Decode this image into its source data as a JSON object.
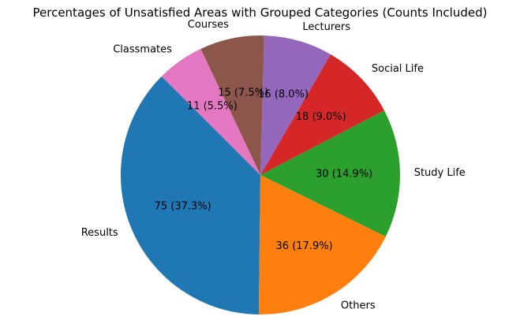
{
  "chart_data": {
    "type": "pie",
    "title": "Percentages of Unsatisfied Areas with Grouped Categories (Counts Included)",
    "start_angle_deg": 135,
    "direction": "counterclockwise",
    "slices": [
      {
        "label": "Results",
        "value": 75,
        "percent_label": "75 (37.3%)",
        "color": "#1f77b4"
      },
      {
        "label": "Others",
        "value": 36,
        "percent_label": "36 (17.9%)",
        "color": "#ff7f0e"
      },
      {
        "label": "Study Life",
        "value": 30,
        "percent_label": "30 (14.9%)",
        "color": "#2ca02c"
      },
      {
        "label": "Social Life",
        "value": 18,
        "percent_label": "18 (9.0%)",
        "color": "#d62728"
      },
      {
        "label": "Lecturers",
        "value": 16,
        "percent_label": "16 (8.0%)",
        "color": "#9467bd"
      },
      {
        "label": "Courses",
        "value": 15,
        "percent_label": "15 (7.5%)",
        "color": "#8c564b"
      },
      {
        "label": "Classmates",
        "value": 11,
        "percent_label": "11 (5.5%)",
        "color": "#e377c2"
      }
    ]
  }
}
